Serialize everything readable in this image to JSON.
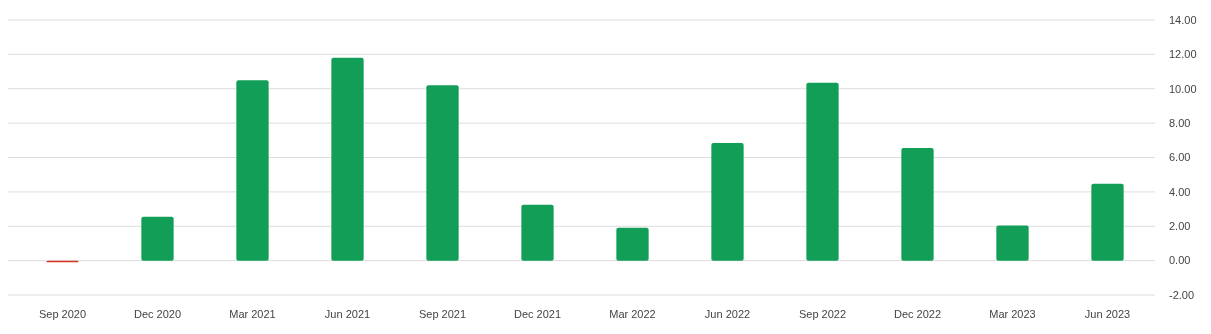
{
  "chart_data": {
    "type": "bar",
    "categories": [
      "Sep 2020",
      "Dec 2020",
      "Mar 2021",
      "Jun 2021",
      "Sep 2021",
      "Dec 2021",
      "Mar 2022",
      "Jun 2022",
      "Sep 2022",
      "Dec 2022",
      "Mar 2023",
      "Jun 2023"
    ],
    "values": [
      -0.1,
      2.55,
      10.5,
      11.8,
      10.2,
      3.25,
      1.92,
      6.85,
      10.35,
      6.55,
      2.04,
      4.47
    ],
    "colors": [
      "#d93025",
      "#129e57",
      "#129e57",
      "#129e57",
      "#129e57",
      "#129e57",
      "#129e57",
      "#129e57",
      "#129e57",
      "#129e57",
      "#129e57",
      "#129e57"
    ],
    "ylim": [
      -2,
      14
    ],
    "yticks": [
      {
        "value": -2,
        "label": "-2.00"
      },
      {
        "value": 0,
        "label": "0.00"
      },
      {
        "value": 2,
        "label": "2.00"
      },
      {
        "value": 4,
        "label": "4.00"
      },
      {
        "value": 6,
        "label": "6.00"
      },
      {
        "value": 8,
        "label": "8.00"
      },
      {
        "value": 10,
        "label": "10.00"
      },
      {
        "value": 12,
        "label": "12.00"
      },
      {
        "value": 14,
        "label": "14.00"
      }
    ],
    "grid": "y"
  }
}
